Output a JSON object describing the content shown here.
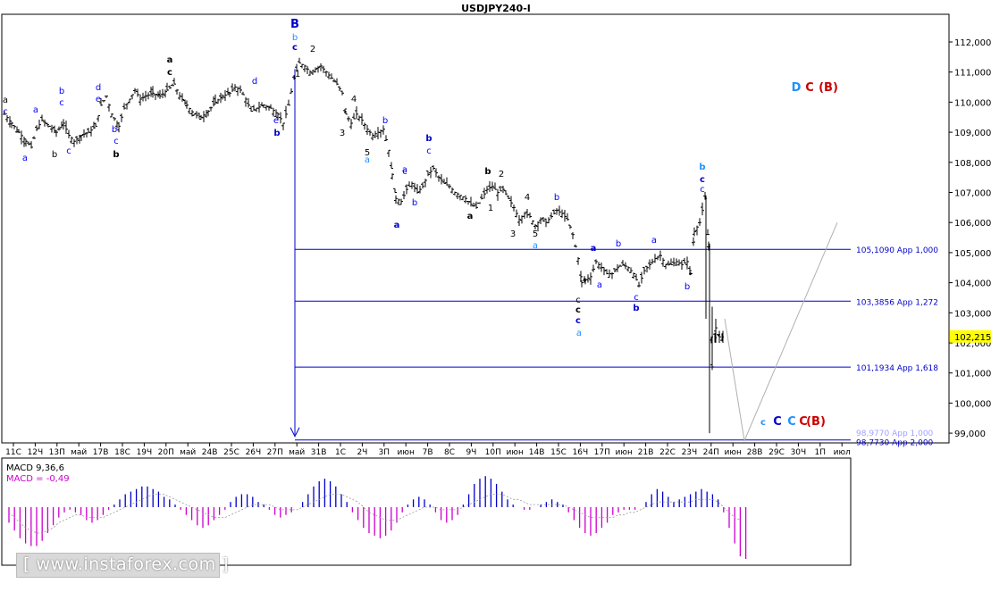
{
  "chart_data": {
    "type": "candlestick",
    "title": "USDJPY240-I",
    "price_axis": {
      "ticks": [
        "112,000",
        "111,000",
        "110,000",
        "109,000",
        "108,000",
        "107,000",
        "106,000",
        "105,000",
        "104,000",
        "103,000",
        "102,000",
        "101,000",
        "100,000",
        "99,000"
      ],
      "current_price": "102,215",
      "ylim": [
        98.7,
        112.5
      ]
    },
    "date_axis": {
      "ticks": [
        "11С",
        "12Ч",
        "13П",
        "май",
        "17В",
        "18С",
        "19Ч",
        "20П",
        "май",
        "24В",
        "25С",
        "26Ч",
        "27П",
        "май",
        "31В",
        "1С",
        "2Ч",
        "3П",
        "июн",
        "7В",
        "8С",
        "9Ч",
        "10П",
        "июн",
        "14В",
        "15С",
        "16Ч",
        "17П",
        "июн",
        "21В",
        "22С",
        "23Ч",
        "24П",
        "июн",
        "28В",
        "29С",
        "30Ч",
        "1П",
        "июл"
      ]
    },
    "fib_levels": [
      {
        "price": 105.109,
        "label": "105,1090 App 1,000"
      },
      {
        "price": 103.3856,
        "label": "103,3856 App 1,272"
      },
      {
        "price": 101.1934,
        "label": "101,1934 App 1,618"
      },
      {
        "price": 98.977,
        "label": "98,9770 App 1,000"
      },
      {
        "price": 98.773,
        "label": "98,7730 App 2,000"
      }
    ],
    "price_path": [
      [
        0,
        109.6
      ],
      [
        8,
        109.3
      ],
      [
        16,
        109.0
      ],
      [
        24,
        108.7
      ],
      [
        30,
        108.5
      ],
      [
        36,
        109.1
      ],
      [
        42,
        109.4
      ],
      [
        50,
        109.2
      ],
      [
        58,
        109.0
      ],
      [
        66,
        109.3
      ],
      [
        72,
        108.9
      ],
      [
        78,
        108.7
      ],
      [
        86,
        108.9
      ],
      [
        94,
        109.0
      ],
      [
        102,
        109.2
      ],
      [
        108,
        109.9
      ],
      [
        114,
        110.2
      ],
      [
        120,
        109.6
      ],
      [
        128,
        109.2
      ],
      [
        134,
        109.8
      ],
      [
        140,
        110.1
      ],
      [
        146,
        110.4
      ],
      [
        152,
        110.1
      ],
      [
        158,
        110.2
      ],
      [
        166,
        110.3
      ],
      [
        174,
        110.2
      ],
      [
        182,
        110.4
      ],
      [
        190,
        110.6
      ],
      [
        196,
        110.2
      ],
      [
        204,
        109.9
      ],
      [
        212,
        109.6
      ],
      [
        220,
        109.5
      ],
      [
        228,
        109.7
      ],
      [
        236,
        110.0
      ],
      [
        244,
        110.2
      ],
      [
        252,
        110.3
      ],
      [
        258,
        110.5
      ],
      [
        264,
        110.4
      ],
      [
        270,
        110.1
      ],
      [
        276,
        109.7
      ],
      [
        282,
        109.8
      ],
      [
        290,
        109.9
      ],
      [
        298,
        109.8
      ],
      [
        306,
        109.6
      ],
      [
        312,
        109.3
      ],
      [
        318,
        109.9
      ],
      [
        324,
        110.8
      ],
      [
        330,
        111.3
      ],
      [
        336,
        111.2
      ],
      [
        342,
        111.0
      ],
      [
        348,
        111.1
      ],
      [
        354,
        111.2
      ],
      [
        360,
        111.0
      ],
      [
        366,
        110.8
      ],
      [
        372,
        110.6
      ],
      [
        378,
        110.3
      ],
      [
        382,
        109.6
      ],
      [
        388,
        109.3
      ],
      [
        394,
        109.6
      ],
      [
        400,
        109.4
      ],
      [
        406,
        109.1
      ],
      [
        412,
        108.9
      ],
      [
        418,
        109.0
      ],
      [
        424,
        109.1
      ],
      [
        430,
        108.4
      ],
      [
        434,
        107.6
      ],
      [
        438,
        106.8
      ],
      [
        444,
        106.7
      ],
      [
        450,
        107.1
      ],
      [
        456,
        107.3
      ],
      [
        462,
        107.0
      ],
      [
        468,
        107.2
      ],
      [
        474,
        107.6
      ],
      [
        480,
        107.8
      ],
      [
        486,
        107.5
      ],
      [
        492,
        107.3
      ],
      [
        498,
        107.2
      ],
      [
        504,
        107.0
      ],
      [
        510,
        106.9
      ],
      [
        516,
        106.8
      ],
      [
        522,
        106.6
      ],
      [
        528,
        106.5
      ],
      [
        534,
        106.8
      ],
      [
        540,
        107.1
      ],
      [
        546,
        107.2
      ],
      [
        552,
        107.0
      ],
      [
        558,
        107.1
      ],
      [
        564,
        106.8
      ],
      [
        570,
        106.5
      ],
      [
        576,
        106.1
      ],
      [
        582,
        106.3
      ],
      [
        588,
        106.2
      ],
      [
        594,
        105.9
      ],
      [
        600,
        106.1
      ],
      [
        606,
        106.0
      ],
      [
        612,
        106.2
      ],
      [
        618,
        106.4
      ],
      [
        624,
        106.3
      ],
      [
        630,
        106.1
      ],
      [
        636,
        105.6
      ],
      [
        642,
        104.8
      ],
      [
        646,
        104.0
      ],
      [
        650,
        104.1
      ],
      [
        656,
        104.2
      ],
      [
        662,
        104.7
      ],
      [
        668,
        104.5
      ],
      [
        674,
        104.3
      ],
      [
        680,
        104.3
      ],
      [
        686,
        104.5
      ],
      [
        692,
        104.6
      ],
      [
        698,
        104.5
      ],
      [
        704,
        104.3
      ],
      [
        710,
        103.9
      ],
      [
        716,
        104.4
      ],
      [
        722,
        104.6
      ],
      [
        728,
        104.8
      ],
      [
        734,
        104.9
      ],
      [
        740,
        104.6
      ],
      [
        746,
        104.6
      ],
      [
        752,
        104.7
      ],
      [
        758,
        104.6
      ],
      [
        764,
        104.7
      ],
      [
        768,
        104.3
      ],
      [
        772,
        105.7
      ],
      [
        778,
        106.0
      ],
      [
        784,
        106.8
      ],
      [
        788,
        105.2
      ],
      [
        792,
        101.2
      ],
      [
        796,
        102.5
      ],
      [
        800,
        102.2
      ],
      [
        806,
        102.2
      ]
    ],
    "wave_labels": [
      {
        "t": "B",
        "c": "#0000cc",
        "b": true
      },
      {
        "t": "b",
        "c": "#1e90ff"
      },
      {
        "t": "c",
        "c": "#0000cc",
        "b": true
      },
      {
        "t": "a",
        "c": "#000000",
        "b": true
      },
      {
        "t": "c",
        "c": "#000000",
        "b": true
      },
      {
        "t": "a",
        "c": "#000"
      },
      {
        "t": "c",
        "c": "#00f"
      },
      {
        "t": "a",
        "c": "#00f"
      },
      {
        "t": "b",
        "c": "#00f"
      },
      {
        "t": "c",
        "c": "#00f"
      },
      {
        "t": "b",
        "c": "#000"
      },
      {
        "t": "c",
        "c": "#00f"
      },
      {
        "t": "d",
        "c": "#00f"
      },
      {
        "t": "e",
        "c": "#00f"
      },
      {
        "t": "b",
        "c": "#000",
        "b": true
      },
      {
        "t": "a",
        "c": "#00f"
      },
      {
        "t": "b",
        "c": "#00f"
      },
      {
        "t": "c",
        "c": "#00f"
      },
      {
        "t": "d",
        "c": "#00f"
      },
      {
        "t": "e",
        "c": "#00f"
      },
      {
        "t": "b",
        "c": "#0000cc",
        "b": true
      },
      {
        "t": "1",
        "c": "#000"
      },
      {
        "t": "2",
        "c": "#000"
      },
      {
        "t": "3",
        "c": "#000"
      },
      {
        "t": "4",
        "c": "#000"
      },
      {
        "t": "5",
        "c": "#000"
      },
      {
        "t": "a",
        "c": "#1e90ff"
      },
      {
        "t": "b",
        "c": "#00f"
      },
      {
        "t": "c",
        "c": "#00f"
      },
      {
        "t": "a",
        "c": "#0000cc",
        "b": true
      },
      {
        "t": "a",
        "c": "#00f"
      },
      {
        "t": "b",
        "c": "#00f"
      },
      {
        "t": "b",
        "c": "#0000cc",
        "b": true
      },
      {
        "t": "c",
        "c": "#00f"
      },
      {
        "t": "b",
        "c": "#000",
        "b": true
      },
      {
        "t": "2",
        "c": "#000"
      },
      {
        "t": "1",
        "c": "#000"
      },
      {
        "t": "a",
        "c": "#000",
        "b": true
      },
      {
        "t": "4",
        "c": "#000"
      },
      {
        "t": "3",
        "c": "#000"
      },
      {
        "t": "5",
        "c": "#000"
      },
      {
        "t": "a",
        "c": "#1e90ff"
      },
      {
        "t": "b",
        "c": "#00f"
      },
      {
        "t": "c",
        "c": "#000"
      },
      {
        "t": "c",
        "c": "#000",
        "b": true
      },
      {
        "t": "c",
        "c": "#0000cc",
        "b": true
      },
      {
        "t": "a",
        "c": "#1e90ff"
      },
      {
        "t": "a",
        "c": "#0000cc",
        "b": true
      },
      {
        "t": "a",
        "c": "#00f"
      },
      {
        "t": "b",
        "c": "#00f"
      },
      {
        "t": "c",
        "c": "#00f"
      },
      {
        "t": "b",
        "c": "#0000cc",
        "b": true
      },
      {
        "t": "a",
        "c": "#00f"
      },
      {
        "t": "b",
        "c": "#00f"
      },
      {
        "t": "b",
        "c": "#1e90ff",
        "b": true
      },
      {
        "t": "c",
        "c": "#0000cc",
        "b": true
      },
      {
        "t": "c",
        "c": "#00f"
      },
      {
        "t": "D",
        "c": "#1e90ff",
        "b": true
      },
      {
        "t": "C",
        "c": "#cc0000",
        "b": true
      },
      {
        "t": "(B)",
        "c": "#cc0000",
        "b": true
      },
      {
        "t": "c",
        "c": "#1e90ff",
        "b": true
      },
      {
        "t": "C",
        "c": "#0000cc",
        "b": true
      },
      {
        "t": "C",
        "c": "#1e90ff",
        "b": true
      },
      {
        "t": "C",
        "c": "#cc0000",
        "b": true
      },
      {
        "t": "(B)",
        "c": "#cc0000",
        "b": true
      }
    ],
    "macd": {
      "label_main": "MACD 9,36,6",
      "label_signal": "MACD = -0,49",
      "histogram": [
        -6,
        -9,
        -12,
        -14,
        -15,
        -15,
        -13,
        -10,
        -7,
        -4,
        -2,
        -1,
        -2,
        -3,
        -5,
        -6,
        -5,
        -3,
        -1,
        1,
        3,
        5,
        6,
        7,
        8,
        8,
        7,
        6,
        4,
        3,
        1,
        -1,
        -3,
        -5,
        -7,
        -8,
        -7,
        -5,
        -3,
        -1,
        2,
        4,
        5,
        5,
        4,
        2,
        1,
        -1,
        -3,
        -4,
        -3,
        -2,
        0,
        2,
        5,
        8,
        10,
        11,
        10,
        8,
        5,
        2,
        -2,
        -5,
        -8,
        -10,
        -11,
        -12,
        -11,
        -9,
        -6,
        -2,
        1,
        3,
        4,
        3,
        1,
        -2,
        -5,
        -6,
        -5,
        -3,
        1,
        5,
        9,
        11,
        12,
        11,
        9,
        6,
        3,
        1,
        0,
        -1,
        -1,
        0,
        1,
        2,
        3,
        2,
        1,
        -2,
        -5,
        -8,
        -10,
        -11,
        -10,
        -8,
        -6,
        -3,
        -2,
        -1,
        -1,
        -1,
        0,
        2,
        5,
        7,
        6,
        4,
        2,
        3,
        4,
        5,
        6,
        7,
        6,
        5,
        3,
        -2,
        -8,
        -14,
        -19,
        -20
      ],
      "signal": [
        -2,
        -4,
        -6,
        -8,
        -9,
        -10,
        -10,
        -9,
        -8,
        -6,
        -5,
        -4,
        -3,
        -3,
        -4,
        -4,
        -4,
        -4,
        -3,
        -2,
        -1,
        0,
        1,
        2,
        3,
        4,
        5,
        5,
        5,
        4,
        3,
        2,
        1,
        0,
        -1,
        -2,
        -3,
        -4,
        -4,
        -4,
        -3,
        -2,
        -1,
        0,
        1,
        1,
        1,
        1,
        0,
        -1,
        -1,
        -1,
        -1,
        0,
        1,
        2,
        3,
        4,
        5,
        5,
        5,
        4,
        3,
        2,
        0,
        -2,
        -3,
        -4,
        -5,
        -5,
        -5,
        -4,
        -3,
        -2,
        -1,
        0,
        0,
        0,
        -1,
        -1,
        -1,
        -1,
        0,
        1,
        2,
        3,
        4,
        5,
        5,
        5,
        4,
        3,
        3,
        2,
        1,
        1,
        1,
        1,
        1,
        1,
        1,
        0,
        -1,
        -2,
        -3,
        -4,
        -4,
        -4,
        -4,
        -4,
        -3,
        -3,
        -2,
        -2,
        -1,
        0,
        1,
        2,
        2,
        2,
        2,
        2,
        2,
        2,
        3,
        3,
        3,
        3,
        2,
        0,
        -2,
        -4,
        -5
      ]
    },
    "watermark": "[ www.instaforex.com ]",
    "colors": {
      "fib_line": "#0000cc",
      "label_text": "#0000cc",
      "price_bar": "#000000",
      "macd_up": "#0000cc",
      "macd_down": "#cc00cc",
      "bullish_ext": "#cc0000",
      "projection": "#b0b0b0",
      "current_price_bg": "#ffff00"
    }
  }
}
